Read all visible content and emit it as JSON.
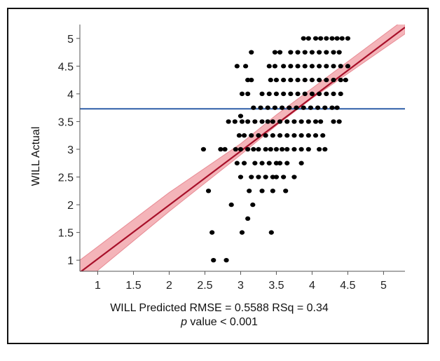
{
  "chart_data": {
    "type": "scatter",
    "xlabel": "WILL Predicted RMSE = 0.5588 RSq = 0.34",
    "note_p": "p",
    "note_rest": " value < 0.001",
    "ylabel": "WILL Actual",
    "xlim": [
      0.75,
      5.3
    ],
    "ylim": [
      0.8,
      5.25
    ],
    "x_ticks": [
      1,
      1.5,
      2,
      2.5,
      3,
      3.5,
      4,
      4.5,
      5
    ],
    "x_tick_labels": [
      "1",
      "1.5",
      "2",
      "2.5",
      "3",
      "3.5",
      "4",
      "4.5",
      "5"
    ],
    "y_ticks": [
      1,
      1.5,
      2,
      2.5,
      3,
      3.5,
      4,
      4.5,
      5
    ],
    "y_tick_labels": [
      "1",
      "1.5",
      "2",
      "2.5",
      "3",
      "3.5",
      "4",
      "4.5",
      "5"
    ],
    "mean_line": {
      "y": 3.73,
      "color": "#2f5fa8"
    },
    "fit_line": {
      "x": [
        0.75,
        5.3
      ],
      "y": [
        0.78,
        5.2
      ],
      "color": "#a8102a"
    },
    "confidence_band": {
      "x": [
        0.75,
        2.0,
        3.0,
        3.5,
        4.0,
        5.3
      ],
      "lower": [
        0.55,
        1.88,
        2.9,
        3.43,
        3.92,
        5.08
      ],
      "upper": [
        1.0,
        2.22,
        3.1,
        3.62,
        4.1,
        5.35
      ],
      "color": "#f4b4b9"
    },
    "point_color": "#000000",
    "points": [
      [
        2.62,
        1.0
      ],
      [
        2.8,
        1.0
      ],
      [
        2.6,
        1.5
      ],
      [
        3.02,
        1.5
      ],
      [
        3.43,
        1.5
      ],
      [
        3.1,
        1.75
      ],
      [
        2.87,
        2.0
      ],
      [
        3.17,
        2.0
      ],
      [
        2.55,
        2.25
      ],
      [
        3.12,
        2.25
      ],
      [
        3.3,
        2.25
      ],
      [
        3.45,
        2.25
      ],
      [
        3.63,
        2.25
      ],
      [
        3.0,
        2.5
      ],
      [
        3.15,
        2.5
      ],
      [
        3.25,
        2.5
      ],
      [
        3.35,
        2.5
      ],
      [
        3.45,
        2.5
      ],
      [
        3.5,
        2.5
      ],
      [
        3.6,
        2.5
      ],
      [
        3.75,
        2.5
      ],
      [
        2.95,
        2.75
      ],
      [
        3.05,
        2.75
      ],
      [
        3.2,
        2.75
      ],
      [
        3.3,
        2.75
      ],
      [
        3.4,
        2.75
      ],
      [
        3.5,
        2.75
      ],
      [
        3.55,
        2.75
      ],
      [
        3.65,
        2.75
      ],
      [
        3.85,
        2.75
      ],
      [
        2.48,
        3.0
      ],
      [
        2.72,
        3.0
      ],
      [
        2.78,
        3.0
      ],
      [
        2.93,
        3.0
      ],
      [
        3.0,
        3.0
      ],
      [
        3.1,
        3.0
      ],
      [
        3.18,
        3.0
      ],
      [
        3.25,
        3.0
      ],
      [
        3.35,
        3.0
      ],
      [
        3.42,
        3.0
      ],
      [
        3.5,
        3.0
      ],
      [
        3.58,
        3.0
      ],
      [
        3.65,
        3.0
      ],
      [
        3.75,
        3.0
      ],
      [
        3.85,
        3.0
      ],
      [
        3.95,
        3.0
      ],
      [
        4.1,
        3.0
      ],
      [
        4.18,
        3.0
      ],
      [
        2.98,
        3.25
      ],
      [
        3.05,
        3.25
      ],
      [
        3.15,
        3.25
      ],
      [
        3.25,
        3.25
      ],
      [
        3.35,
        3.25
      ],
      [
        3.45,
        3.25
      ],
      [
        3.55,
        3.25
      ],
      [
        3.65,
        3.25
      ],
      [
        3.75,
        3.25
      ],
      [
        3.85,
        3.25
      ],
      [
        3.95,
        3.25
      ],
      [
        4.05,
        3.25
      ],
      [
        4.15,
        3.25
      ],
      [
        2.83,
        3.5
      ],
      [
        2.92,
        3.5
      ],
      [
        3.02,
        3.5
      ],
      [
        3.1,
        3.5
      ],
      [
        3.2,
        3.5
      ],
      [
        3.3,
        3.5
      ],
      [
        3.38,
        3.5
      ],
      [
        3.45,
        3.5
      ],
      [
        3.55,
        3.5
      ],
      [
        3.65,
        3.5
      ],
      [
        3.75,
        3.5
      ],
      [
        3.85,
        3.5
      ],
      [
        3.95,
        3.5
      ],
      [
        4.05,
        3.5
      ],
      [
        4.12,
        3.5
      ],
      [
        4.3,
        3.5
      ],
      [
        4.38,
        3.5
      ],
      [
        3.18,
        3.75
      ],
      [
        3.28,
        3.75
      ],
      [
        3.38,
        3.75
      ],
      [
        3.48,
        3.75
      ],
      [
        3.58,
        3.75
      ],
      [
        3.68,
        3.75
      ],
      [
        3.78,
        3.75
      ],
      [
        3.88,
        3.75
      ],
      [
        3.98,
        3.75
      ],
      [
        4.08,
        3.75
      ],
      [
        4.18,
        3.75
      ],
      [
        4.28,
        3.75
      ],
      [
        4.35,
        3.75
      ],
      [
        3.0,
        3.6
      ],
      [
        3.02,
        4.0
      ],
      [
        3.1,
        4.0
      ],
      [
        3.3,
        4.0
      ],
      [
        3.4,
        4.0
      ],
      [
        3.5,
        4.0
      ],
      [
        3.6,
        4.0
      ],
      [
        3.7,
        4.0
      ],
      [
        3.8,
        4.0
      ],
      [
        3.9,
        4.0
      ],
      [
        4.0,
        4.0
      ],
      [
        4.1,
        4.0
      ],
      [
        4.2,
        4.0
      ],
      [
        4.3,
        4.0
      ],
      [
        4.4,
        4.0
      ],
      [
        3.1,
        4.25
      ],
      [
        3.15,
        4.25
      ],
      [
        3.42,
        4.25
      ],
      [
        3.5,
        4.25
      ],
      [
        3.6,
        4.25
      ],
      [
        3.7,
        4.25
      ],
      [
        3.8,
        4.25
      ],
      [
        3.9,
        4.25
      ],
      [
        4.0,
        4.25
      ],
      [
        4.1,
        4.25
      ],
      [
        4.2,
        4.25
      ],
      [
        4.3,
        4.25
      ],
      [
        4.4,
        4.25
      ],
      [
        4.47,
        4.25
      ],
      [
        2.95,
        4.5
      ],
      [
        3.07,
        4.5
      ],
      [
        3.4,
        4.5
      ],
      [
        3.48,
        4.5
      ],
      [
        3.6,
        4.5
      ],
      [
        3.7,
        4.5
      ],
      [
        3.8,
        4.5
      ],
      [
        3.9,
        4.5
      ],
      [
        4.0,
        4.5
      ],
      [
        4.1,
        4.5
      ],
      [
        4.2,
        4.5
      ],
      [
        4.3,
        4.5
      ],
      [
        4.4,
        4.5
      ],
      [
        4.5,
        4.5
      ],
      [
        3.15,
        4.75
      ],
      [
        3.48,
        4.75
      ],
      [
        3.55,
        4.75
      ],
      [
        3.7,
        4.75
      ],
      [
        3.8,
        4.75
      ],
      [
        3.9,
        4.75
      ],
      [
        4.0,
        4.75
      ],
      [
        4.1,
        4.75
      ],
      [
        4.2,
        4.75
      ],
      [
        4.3,
        4.75
      ],
      [
        4.38,
        4.75
      ],
      [
        3.88,
        5.0
      ],
      [
        3.95,
        5.0
      ],
      [
        4.05,
        5.0
      ],
      [
        4.12,
        5.0
      ],
      [
        4.2,
        5.0
      ],
      [
        4.28,
        5.0
      ],
      [
        4.35,
        5.0
      ],
      [
        4.42,
        5.0
      ],
      [
        4.5,
        5.0
      ]
    ]
  }
}
